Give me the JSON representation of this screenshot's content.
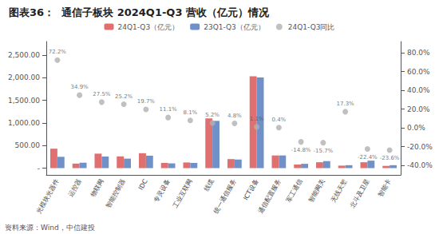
{
  "chart_data": {
    "type": "bar",
    "title": "图表36：  通信子板块 2024Q1-Q3 营收（亿元）情况",
    "annotations": [
      "资料来源：Wind，中信建投"
    ],
    "categories": [
      "光模块光器件",
      "运控器",
      "物联网",
      "智能控制器",
      "IDC",
      "专灵设备",
      "工业互联网",
      "线缆",
      "统一通信服务",
      "ICT设备",
      "通信配置服务",
      "军工通信",
      "智能网关",
      "无线天堑",
      "北斗及卫星",
      "智能卡"
    ],
    "series": [
      {
        "name": "24Q1-Q3（亿元）",
        "type": "bar",
        "color": "#E07070",
        "values": [
          430,
          100,
          320,
          260,
          330,
          115,
          125,
          1100,
          200,
          2030,
          280,
          80,
          130,
          55,
          130,
          50
        ]
      },
      {
        "name": "23Q1-Q3（亿元）",
        "type": "bar",
        "color": "#7090C8",
        "values": [
          250,
          120,
          255,
          210,
          275,
          105,
          115,
          1045,
          190,
          2005,
          280,
          95,
          155,
          65,
          165,
          65
        ]
      },
      {
        "name": "24Q1-Q3同比",
        "type": "scatter",
        "axis": "y2",
        "color": "#B0B0B0",
        "marker": "circle",
        "data_labels": true,
        "values": [
          0.722,
          0.349,
          0.275,
          0.252,
          0.197,
          0.111,
          0.081,
          0.052,
          0.048,
          0.011,
          0.004,
          -0.148,
          -0.157,
          0.173,
          -0.224,
          -0.236
        ],
        "value_labels": [
          "72.2%",
          "34.9%",
          "27.5%",
          "25.2%",
          "19.7%",
          "11.1%",
          "8.1%",
          "5.2%",
          "4.8%",
          "1.1%",
          "0.4%",
          "-14.8%",
          "-15.7%",
          "17.3%",
          "-22.4%",
          "-23.6%"
        ]
      }
    ],
    "ylim": [
      -150,
      2800
    ],
    "yticks": [
      {
        "value": 0,
        "label": "-"
      },
      {
        "value": 500,
        "label": "500.00"
      },
      {
        "value": 1000,
        "label": "1,000.00"
      },
      {
        "value": 1500,
        "label": "1,500.00"
      },
      {
        "value": 2000,
        "label": "2,000.00"
      },
      {
        "value": 2500,
        "label": "2,500.00"
      }
    ],
    "y2lim": [
      -0.5,
      0.92
    ],
    "y2ticks": [
      {
        "value": -0.4,
        "label": "-40.0%"
      },
      {
        "value": -0.2,
        "label": "-20.0%"
      },
      {
        "value": 0,
        "label": "0.0%"
      },
      {
        "value": 0.2,
        "label": "20.0%"
      },
      {
        "value": 0.4,
        "label": "40.0%"
      },
      {
        "value": 0.6,
        "label": "60.0%"
      },
      {
        "value": 0.8,
        "label": "80.0%"
      }
    ],
    "grid": false,
    "legend": "top"
  }
}
